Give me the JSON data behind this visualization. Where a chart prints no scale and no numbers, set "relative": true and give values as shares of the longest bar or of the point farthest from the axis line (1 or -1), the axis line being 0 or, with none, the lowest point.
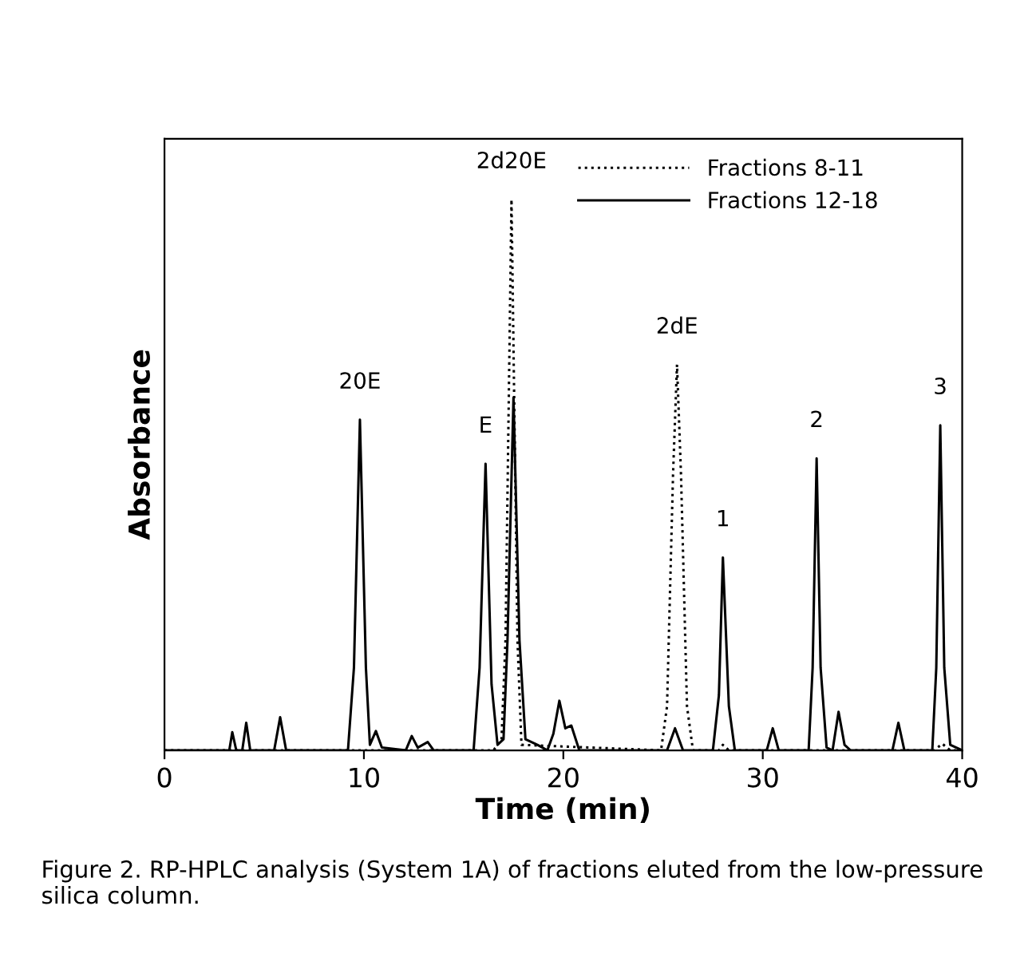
{
  "chart_data": {
    "type": "line",
    "xlabel": "Time (min)",
    "ylabel": "Absorbance",
    "relative": true,
    "xlim": [
      0,
      40
    ],
    "xticks": [
      0,
      10,
      20,
      30,
      40
    ],
    "grid": false,
    "legend": "top right",
    "marker": "none",
    "series": [
      {
        "name": "Fractions 8-11",
        "color": "#000000",
        "line_style": "dotted",
        "x": [
          0,
          16.5,
          16.9,
          17.1,
          17.4,
          17.7,
          17.9,
          24.9,
          25.2,
          25.5,
          25.7,
          25.9,
          26.2,
          26.5,
          27.8,
          28.0,
          28.3,
          38.6,
          39.0,
          39.4,
          40
        ],
        "values": [
          0,
          0,
          0.02,
          0.2,
          1.0,
          0.2,
          0.01,
          0,
          0.08,
          0.5,
          0.7,
          0.5,
          0.08,
          0,
          0,
          0.01,
          0,
          0,
          0.012,
          0,
          0
        ]
      },
      {
        "name": "Fractions 12-18",
        "color": "#000000",
        "line_style": "solid",
        "x": [
          0,
          3.0,
          3.25,
          3.4,
          3.6,
          3.9,
          4.1,
          4.3,
          5.5,
          5.8,
          6.1,
          9.2,
          9.5,
          9.8,
          10.1,
          10.3,
          10.6,
          10.9,
          12.1,
          12.4,
          12.7,
          13.2,
          13.5,
          15.5,
          15.8,
          16.1,
          16.4,
          16.7,
          17.0,
          17.2,
          17.5,
          17.8,
          18.1,
          18.7,
          19.2,
          19.5,
          19.8,
          20.1,
          20.4,
          20.8,
          25.2,
          25.6,
          26.0,
          27.5,
          27.8,
          28.0,
          28.3,
          28.6,
          30.2,
          30.5,
          30.8,
          32.3,
          32.5,
          32.7,
          32.9,
          33.2,
          33.5,
          33.8,
          34.1,
          34.4,
          36.5,
          36.8,
          37.1,
          38.5,
          38.7,
          38.9,
          39.1,
          39.4,
          40
        ],
        "values": [
          0,
          0,
          0,
          0.033,
          0,
          0,
          0.05,
          0,
          0,
          0.06,
          0,
          0,
          0.15,
          0.6,
          0.15,
          0.01,
          0.035,
          0.005,
          0,
          0.026,
          0.005,
          0.015,
          0,
          0,
          0.15,
          0.52,
          0.12,
          0.01,
          0.02,
          0.2,
          0.64,
          0.2,
          0.02,
          0.01,
          0,
          0.03,
          0.09,
          0.04,
          0.045,
          0,
          0,
          0.04,
          0,
          0,
          0.1,
          0.35,
          0.08,
          0,
          0,
          0.04,
          0,
          0,
          0.15,
          0.53,
          0.15,
          0.005,
          0,
          0.07,
          0.01,
          0,
          0,
          0.05,
          0,
          0,
          0.15,
          0.59,
          0.15,
          0.01,
          0
        ]
      }
    ],
    "annotations": [
      {
        "text": "20E",
        "x": 9.8,
        "y": 0.6
      },
      {
        "text": "E",
        "x": 16.1,
        "y": 0.52
      },
      {
        "text": "2d20E",
        "x": 17.4,
        "y": 1.0
      },
      {
        "text": "2dE",
        "x": 25.7,
        "y": 0.7
      },
      {
        "text": "1",
        "x": 28.0,
        "y": 0.35
      },
      {
        "text": "2",
        "x": 32.7,
        "y": 0.53
      },
      {
        "text": "3",
        "x": 38.9,
        "y": 0.59
      },
      "Figure 2. RP-HPLC analysis (System 1A) of fractions eluted from the low-pressure silica column."
    ]
  }
}
